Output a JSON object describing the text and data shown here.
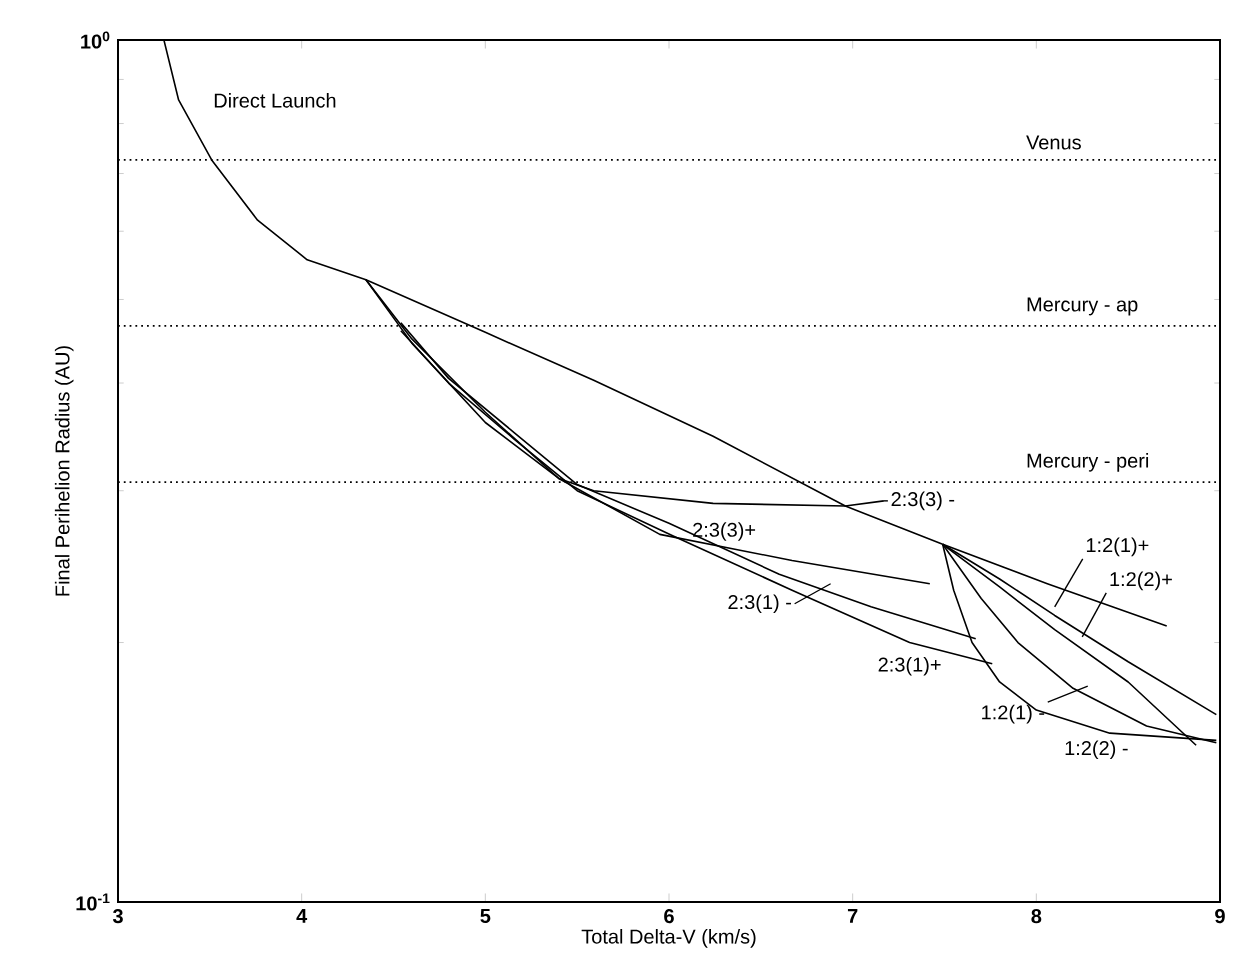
{
  "chart_data": {
    "type": "line",
    "xlabel": "Total Delta-V (km/s)",
    "ylabel": "Final Perihelion Radius (AU)",
    "log": "y",
    "xlim": [
      3,
      9
    ],
    "ylim": [
      0.1,
      1
    ],
    "xticks": [
      3,
      4,
      5,
      6,
      7,
      8,
      9
    ],
    "yticks": [
      {
        "value": 0.1,
        "label": "10$^{-1}$"
      },
      {
        "value": 1,
        "label": "10$^{0}$"
      }
    ],
    "series": [
      {
        "color": "#000000",
        "x": [
          3.25,
          3.33,
          3.51,
          3.76,
          4.03,
          4.35,
          5.0,
          5.59,
          6.24,
          6.96,
          7.49,
          8.06,
          8.71
        ],
        "values": [
          1.0,
          0.852,
          0.726,
          0.618,
          0.556,
          0.527,
          0.458,
          0.403,
          0.347,
          0.288,
          0.26,
          0.234,
          0.209
        ]
      },
      {
        "color": "#000000",
        "x": [
          4.35,
          4.6,
          5.0,
          5.4,
          5.59,
          6.24,
          6.96,
          7.17
        ],
        "values": [
          0.527,
          0.445,
          0.36,
          0.31,
          0.3,
          0.29,
          0.288,
          0.292
        ]
      },
      {
        "color": "#000000",
        "x": [
          4.35,
          4.6,
          5.0,
          5.4,
          5.95,
          6.67,
          7.42
        ],
        "values": [
          0.527,
          0.45,
          0.37,
          0.31,
          0.267,
          0.249,
          0.234
        ]
      },
      {
        "color": "#000000",
        "x": [
          4.54,
          4.8,
          5.16,
          5.5,
          6.0,
          6.6,
          7.1,
          7.67
        ],
        "values": [
          0.47,
          0.405,
          0.35,
          0.305,
          0.275,
          0.24,
          0.22,
          0.202
        ]
      },
      {
        "color": "#000000",
        "x": [
          4.54,
          4.8,
          5.16,
          5.5,
          6.02,
          6.67,
          7.31,
          7.76
        ],
        "values": [
          0.46,
          0.4,
          0.344,
          0.3,
          0.266,
          0.23,
          0.2,
          0.189
        ]
      },
      {
        "color": "#000000",
        "x": [
          7.49,
          7.8,
          8.1,
          8.5,
          8.98
        ],
        "values": [
          0.26,
          0.237,
          0.215,
          0.19,
          0.165
        ]
      },
      {
        "color": "#000000",
        "x": [
          7.49,
          7.8,
          8.1,
          8.5,
          8.87
        ],
        "values": [
          0.26,
          0.232,
          0.207,
          0.18,
          0.152
        ]
      },
      {
        "color": "#000000",
        "x": [
          7.49,
          7.7,
          7.9,
          8.2,
          8.6,
          8.98
        ],
        "values": [
          0.26,
          0.225,
          0.2,
          0.177,
          0.16,
          0.153
        ]
      },
      {
        "color": "#000000",
        "x": [
          7.49,
          7.55,
          7.65,
          7.8,
          8.0,
          8.4,
          8.98
        ],
        "values": [
          0.26,
          0.23,
          0.2,
          0.18,
          0.167,
          0.157,
          0.154
        ]
      }
    ],
    "ref_lines": [
      {
        "axis": "y",
        "value": 0.726,
        "label": "Venus",
        "line_style": "dotted"
      },
      {
        "axis": "y",
        "value": 0.466,
        "label": "Mercury - ap",
        "line_style": "dotted"
      },
      {
        "axis": "y",
        "value": 0.307,
        "label": "Mercury - peri",
        "line_style": "dotted"
      }
    ],
    "annotations": [
      "Direct Launch",
      {
        "text": "2:3(3) -",
        "x": 7.17,
        "y": 0.292
      },
      {
        "text": "2:3(3)+",
        "x": 6.3,
        "y": 0.258
      },
      {
        "text": "2:3(1) -",
        "x": 6.88,
        "y": 0.234
      },
      {
        "text": "2:3(1)+",
        "x": 7.31,
        "y": 0.2
      },
      {
        "text": "1:2(1)+",
        "x": 8.1,
        "y": 0.22
      },
      {
        "text": "1:2(2)+",
        "x": 8.25,
        "y": 0.203
      },
      {
        "text": "1:2(1) -",
        "x": 8.28,
        "y": 0.178
      },
      {
        "text": "1:2(2) -",
        "x": 8.0,
        "y": 0.167
      }
    ]
  }
}
